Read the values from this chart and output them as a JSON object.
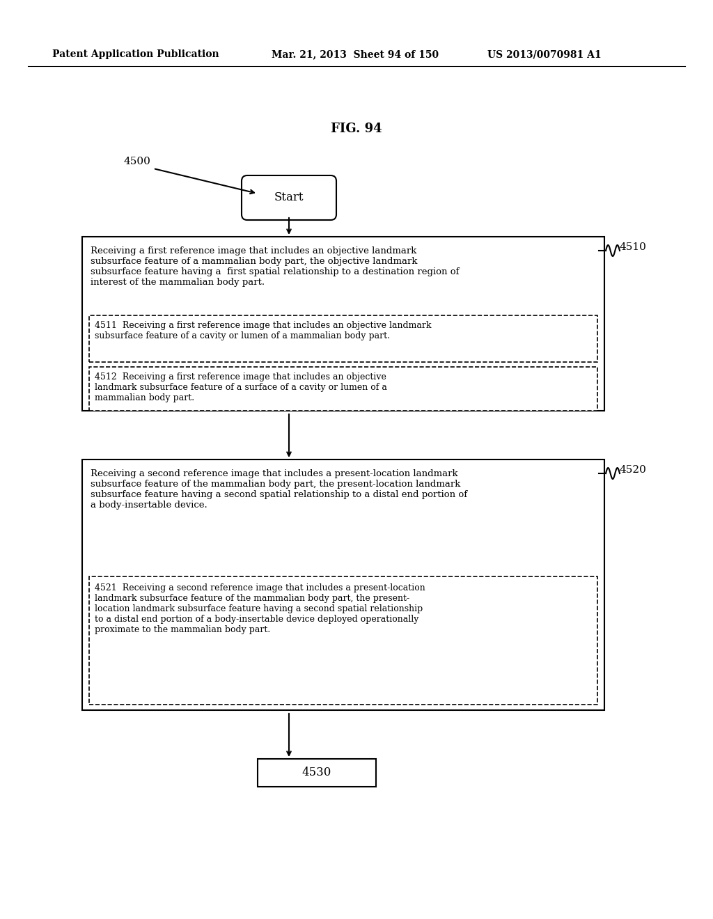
{
  "title": "FIG. 94",
  "header_left": "Patent Application Publication",
  "header_mid": "Mar. 21, 2013  Sheet 94 of 150",
  "header_right": "US 2013/0070981 A1",
  "fig_label": "4500",
  "start_label": "Start",
  "box1_label": "4510",
  "box1_main_text": "Receiving a first reference image that includes an objective landmark\nsubsurface feature of a mammalian body part, the objective landmark\nsubsurface feature having a  first spatial relationship to a destination region of\ninterest of the mammalian body part.",
  "box1_sub1_label": "4511",
  "box1_sub1_text": "Receiving a first reference image that includes an objective landmark\nsubsurface feature of a cavity or lumen of a mammalian body part.",
  "box1_sub2_label": "4512",
  "box1_sub2_text": "Receiving a first reference image that includes an objective\nlandmark subsurface feature of a surface of a cavity or lumen of a\nmammalian body part.",
  "box2_label": "4520",
  "box2_main_text": "Receiving a second reference image that includes a present-location landmark\nsubsurface feature of the mammalian body part, the present-location landmark\nsubsurface feature having a second spatial relationship to a distal end portion of\na body-insertable device.",
  "box2_sub1_label": "4521",
  "box2_sub1_text": "Receiving a second reference image that includes a present-location\nlandmark subsurface feature of the mammalian body part, the present-\nlocation landmark subsurface feature having a second spatial relationship\nto a distal end portion of a body-insertable device deployed operationally\nproximate to the mammalian body part.",
  "box3_label": "4530",
  "bg_color": "#ffffff",
  "text_color": "#000000",
  "line_color": "#000000"
}
